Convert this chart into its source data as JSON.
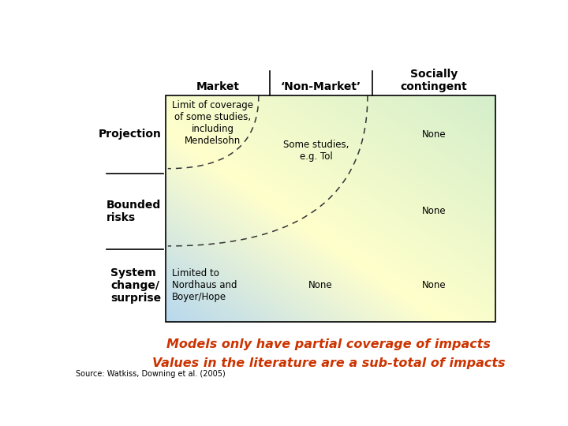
{
  "col_headers": [
    "Market",
    "‘Non-Market’",
    "Socially\ncontingent"
  ],
  "row_labels": [
    "Projection",
    "Bounded\nrisks",
    "System\nchange/\nsurprise"
  ],
  "cell_texts": {
    "projection_market": "Limit of coverage\nof some studies,\nincluding\nMendelsohn",
    "projection_nonmarket": "Some studies,\ne.g. Tol",
    "projection_socially": "None",
    "bounded_market": "",
    "bounded_nonmarket": "",
    "bounded_socially": "None",
    "system_market": "Limited to\nNordhaus and\nBoyer/Hope",
    "system_nonmarket": "None",
    "system_socially": "None"
  },
  "curve_color": "#333333",
  "title1": "Models only have partial coverage of impacts",
  "title2": "Values in the literature are a sub-total of impacts",
  "source_text": "Source: Watkiss, Downing et al. (2005)",
  "title_color": "#cc3300"
}
